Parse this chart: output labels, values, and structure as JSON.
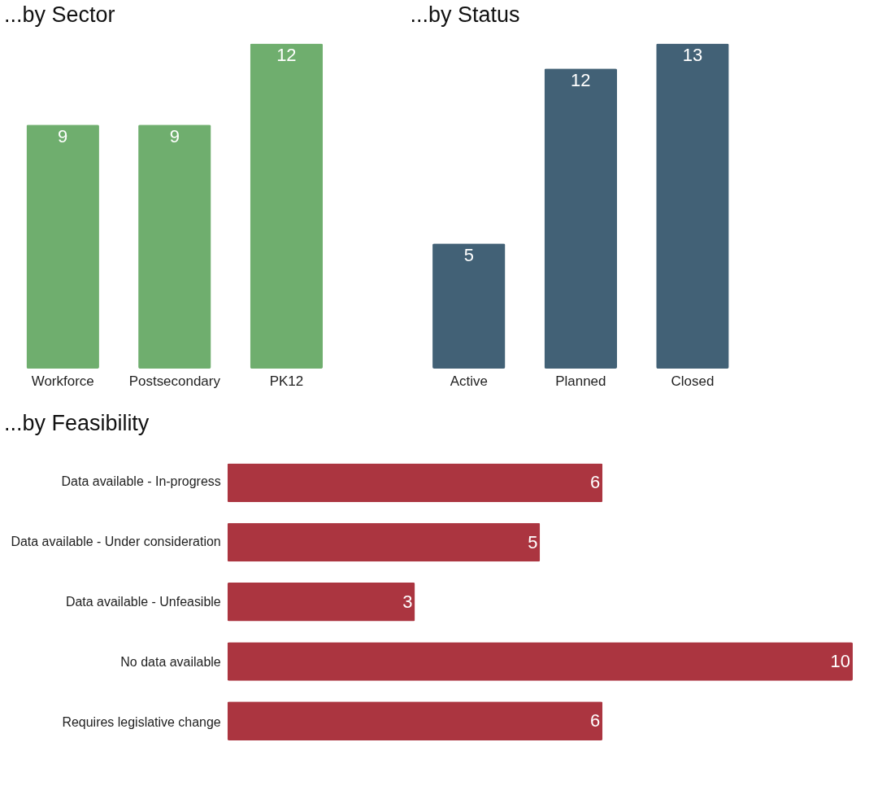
{
  "chart_data": [
    {
      "type": "bar",
      "title": "...by Sector",
      "categories": [
        "Workforce",
        "Postsecondary",
        "PK12"
      ],
      "values": [
        9,
        9,
        12
      ],
      "color": "#6fae6e",
      "data_labels": true,
      "grid": false,
      "legend": false
    },
    {
      "type": "bar",
      "title": "...by Status",
      "categories": [
        "Active",
        "Planned",
        "Closed"
      ],
      "values": [
        5,
        12,
        13
      ],
      "color": "#426176",
      "data_labels": true,
      "grid": false,
      "legend": false
    },
    {
      "type": "bar",
      "title": "...by Feasibility",
      "orientation": "horizontal",
      "categories": [
        "Data available - In-progress",
        "Data available - Under consideration",
        "Data available - Unfeasible",
        "No data available",
        "Requires legislative change"
      ],
      "values": [
        6,
        5,
        3,
        10,
        6
      ],
      "color": "#ab3540",
      "data_labels": true,
      "grid": false,
      "legend": false
    }
  ]
}
